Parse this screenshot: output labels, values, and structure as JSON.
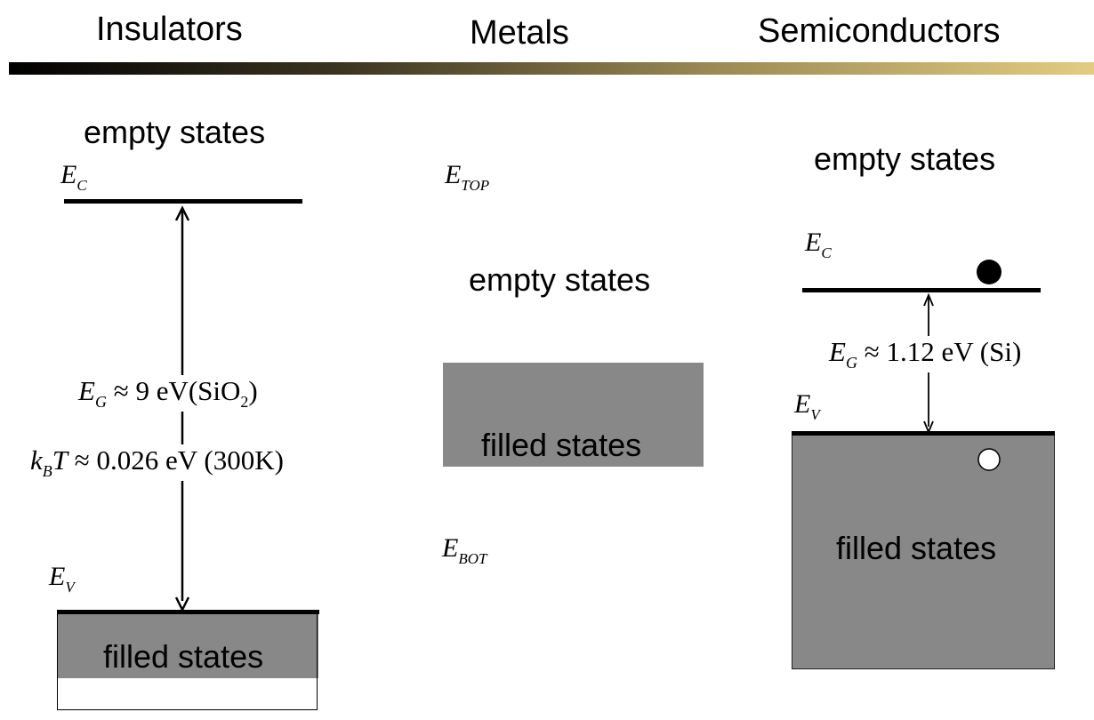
{
  "headings": {
    "insulators": "Insulators",
    "metals": "Metals",
    "semiconductors": "Semiconductors"
  },
  "insulator": {
    "empty_states": "empty states",
    "ec_main": "E",
    "ec_sub": "C",
    "ev_main": "E",
    "ev_sub": "V",
    "eg_main": "E",
    "eg_sub": "G",
    "eg_rest": "≈ 9 eV(SiO",
    "eg_sub2": "2",
    "eg_close": ")",
    "kbt_main": "k",
    "kbt_sub": "B",
    "kbt_t": "T",
    "kbt_rest": "≈ 0.026 eV (300K)",
    "filled_states": "filled states"
  },
  "metal": {
    "etop_main": "E",
    "etop_sub": "TOP",
    "empty_states": "empty states",
    "filled_states": "filled states",
    "ebot_main": "E",
    "ebot_sub": "BOT"
  },
  "semiconductor": {
    "empty_states": "empty states",
    "ec_main": "E",
    "ec_sub": "C",
    "eg_main": "E",
    "eg_sub": "G",
    "eg_rest": "≈ 1.12 eV (Si)",
    "ev_main": "E",
    "ev_sub": "V",
    "filled_states": "filled states"
  },
  "colors": {
    "filled": "#888888",
    "header_gradient_start": "#000000",
    "header_gradient_end": "#e3cc82"
  }
}
